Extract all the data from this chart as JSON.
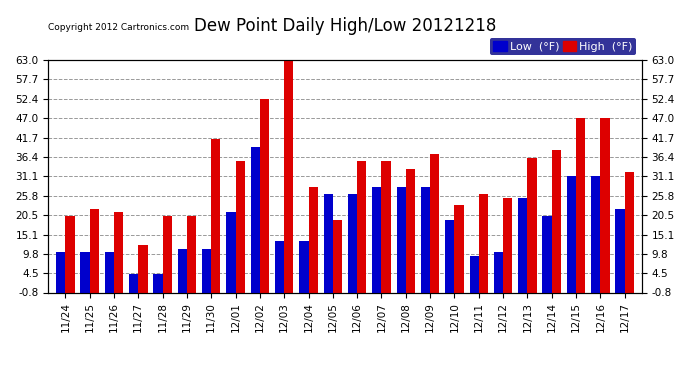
{
  "title": "Dew Point Daily High/Low 20121218",
  "copyright": "Copyright 2012 Cartronics.com",
  "dates": [
    "11/24",
    "11/25",
    "11/26",
    "11/27",
    "11/28",
    "11/29",
    "11/30",
    "12/01",
    "12/02",
    "12/03",
    "12/04",
    "12/05",
    "12/06",
    "12/07",
    "12/08",
    "12/09",
    "12/10",
    "12/11",
    "12/12",
    "12/13",
    "12/14",
    "12/15",
    "12/16",
    "12/17"
  ],
  "low_values": [
    11,
    11,
    11,
    5,
    5,
    12,
    12,
    22,
    40,
    14,
    14,
    27,
    27,
    29,
    29,
    29,
    20,
    10,
    11,
    26,
    21,
    32,
    32,
    23
  ],
  "high_values": [
    21,
    23,
    22,
    13,
    21,
    21,
    42,
    36,
    53,
    64,
    29,
    20,
    36,
    36,
    34,
    38,
    24,
    27,
    26,
    37,
    39,
    48,
    48,
    33
  ],
  "low_color": "#0000cc",
  "high_color": "#dd0000",
  "bg_color": "#ffffff",
  "grid_color": "#999999",
  "yticks": [
    -0.8,
    4.5,
    9.8,
    15.1,
    20.5,
    25.8,
    31.1,
    36.4,
    41.7,
    47.0,
    52.4,
    57.7,
    63.0
  ],
  "ylim": [
    -0.8,
    63.0
  ],
  "bar_width": 0.38,
  "title_fontsize": 12,
  "tick_fontsize": 7.5,
  "legend_fontsize": 8
}
